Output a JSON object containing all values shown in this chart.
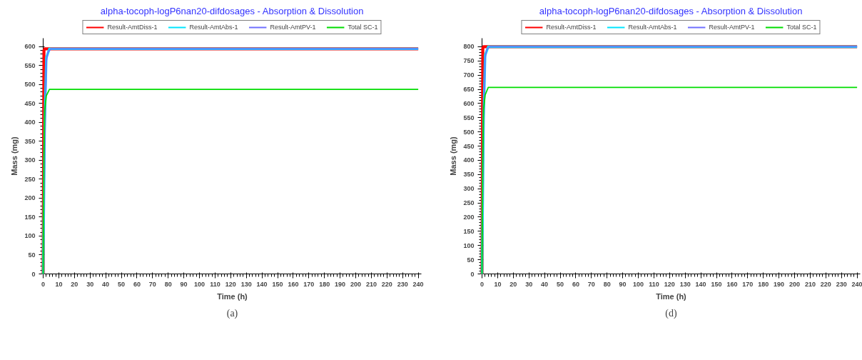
{
  "chart_data": [
    {
      "type": "line",
      "title": "alpha-tocoph-logP6nan20-difdosages - Absorption & Dissolution",
      "xlabel": "Time (h)",
      "ylabel": "Mass (mg)",
      "annotations": [
        "(a)"
      ],
      "legend": "top",
      "grid": false,
      "marker": "none",
      "line_style": "solid",
      "xlim": [
        0,
        242
      ],
      "ylim": [
        0,
        622
      ],
      "xticks": [
        0,
        10,
        20,
        30,
        40,
        50,
        60,
        70,
        80,
        90,
        100,
        110,
        120,
        130,
        140,
        150,
        160,
        170,
        180,
        190,
        200,
        210,
        220,
        230,
        240
      ],
      "yticks": [
        0,
        50,
        100,
        150,
        200,
        250,
        300,
        350,
        400,
        450,
        500,
        550,
        600
      ],
      "series": [
        {
          "name": "Result-AmtDiss-1",
          "color": "#ff0000",
          "x": [
            0,
            0.5,
            1,
            240
          ],
          "values": [
            0,
            590,
            594,
            594
          ]
        },
        {
          "name": "Result-AmtAbs-1",
          "color": "#00e5ff",
          "x": [
            0,
            1,
            2,
            4,
            240
          ],
          "values": [
            0,
            400,
            570,
            594,
            594
          ]
        },
        {
          "name": "Result-AmtPV-1",
          "color": "#7070ff",
          "x": [
            0,
            1,
            2,
            3,
            5,
            240
          ],
          "values": [
            0,
            330,
            560,
            585,
            594,
            594
          ]
        },
        {
          "name": "Total SC-1",
          "color": "#00dd00",
          "x": [
            0,
            0.5,
            1,
            2,
            4,
            240
          ],
          "values": [
            0,
            300,
            430,
            470,
            487,
            487
          ]
        }
      ]
    },
    {
      "type": "line",
      "title": "alpha-tocoph-logP6nan20-difdosages - Absorption & Dissolution",
      "xlabel": "Time (h)",
      "ylabel": "Mass (mg)",
      "annotations": [
        "(d)"
      ],
      "legend": "top",
      "grid": false,
      "marker": "none",
      "line_style": "solid",
      "xlim": [
        0,
        242
      ],
      "ylim": [
        0,
        830
      ],
      "xticks": [
        0,
        10,
        20,
        30,
        40,
        50,
        60,
        70,
        80,
        90,
        100,
        110,
        120,
        130,
        140,
        150,
        160,
        170,
        180,
        190,
        200,
        210,
        220,
        230,
        240
      ],
      "yticks": [
        0,
        50,
        100,
        150,
        200,
        250,
        300,
        350,
        400,
        450,
        500,
        550,
        600,
        650,
        700,
        750,
        800
      ],
      "series": [
        {
          "name": "Result-AmtDiss-1",
          "color": "#ff0000",
          "x": [
            0,
            0.5,
            1,
            240
          ],
          "values": [
            0,
            795,
            800,
            800
          ]
        },
        {
          "name": "Result-AmtAbs-1",
          "color": "#00e5ff",
          "x": [
            0,
            1,
            2,
            4,
            240
          ],
          "values": [
            0,
            540,
            770,
            800,
            800
          ]
        },
        {
          "name": "Result-AmtPV-1",
          "color": "#7070ff",
          "x": [
            0,
            1,
            2,
            3,
            5,
            240
          ],
          "values": [
            0,
            500,
            760,
            790,
            800,
            800
          ]
        },
        {
          "name": "Total SC-1",
          "color": "#00dd00",
          "x": [
            0,
            0.5,
            1,
            2,
            4,
            240
          ],
          "values": [
            0,
            400,
            580,
            630,
            657,
            657
          ]
        }
      ]
    }
  ]
}
